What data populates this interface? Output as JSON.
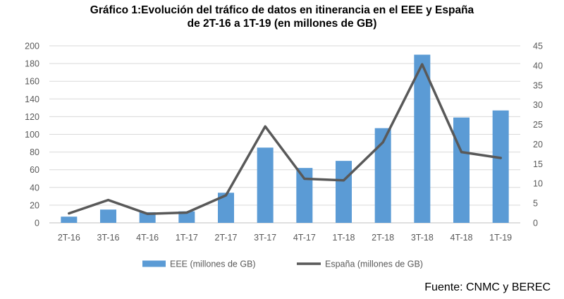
{
  "chart_data": {
    "type": "bar+line",
    "title_line1": "Gráfico 1:Evolución del tráfico de datos en itinerancia en el EEE y España",
    "title_line2": "de 2T-16 a 1T-19 (en millones de GB)",
    "categories": [
      "2T-16",
      "3T-16",
      "4T-16",
      "1T-17",
      "2T-17",
      "3T-17",
      "4T-17",
      "1T-18",
      "2T-18",
      "3T-18",
      "4T-18",
      "1T-19"
    ],
    "series": [
      {
        "name": "EEE (millones de GB)",
        "type": "bar",
        "axis": "left",
        "color": "#5B9BD5",
        "values": [
          7,
          15,
          12,
          13,
          34,
          85,
          62,
          70,
          107,
          190,
          119,
          127
        ]
      },
      {
        "name": "España (millones de GB)",
        "type": "line",
        "axis": "right",
        "color": "#595959",
        "values": [
          2.4,
          5.8,
          2.3,
          2.6,
          7.0,
          24.5,
          11.2,
          10.8,
          20.5,
          40.3,
          18.0,
          16.5
        ]
      }
    ],
    "y_left": {
      "min": 0,
      "max": 200,
      "step": 20,
      "ticks": [
        "0",
        "20",
        "40",
        "60",
        "80",
        "100",
        "120",
        "140",
        "160",
        "180",
        "200"
      ]
    },
    "y_right": {
      "min": 0,
      "max": 45,
      "step": 5,
      "ticks": [
        "0",
        "5",
        "10",
        "15",
        "20",
        "25",
        "30",
        "35",
        "40",
        "45"
      ]
    },
    "grid": true,
    "legend": "bottom-center"
  },
  "source": "Fuente: CNMC y BEREC"
}
